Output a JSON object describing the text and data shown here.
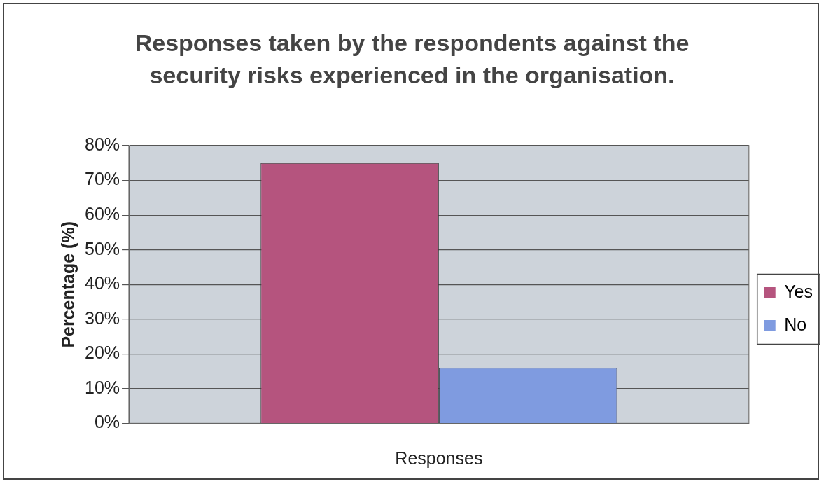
{
  "chart_data": {
    "type": "bar",
    "title": "Responses taken by the respondents against the security risks experienced in the organisation.",
    "xlabel": "Responses",
    "ylabel": "Percentage (%)",
    "categories": [
      null
    ],
    "series": [
      {
        "name": "Yes",
        "color": "#b5547e",
        "values": [
          75
        ]
      },
      {
        "name": "No",
        "color": "#7f9be0",
        "values": [
          16
        ]
      }
    ],
    "ylim": [
      0,
      80
    ],
    "yticks": [
      {
        "value": 0,
        "label": "0%"
      },
      {
        "value": 10,
        "label": "10%"
      },
      {
        "value": 20,
        "label": "20%"
      },
      {
        "value": 30,
        "label": "30%"
      },
      {
        "value": 40,
        "label": "40%"
      },
      {
        "value": 50,
        "label": "50%"
      },
      {
        "value": 60,
        "label": "60%"
      },
      {
        "value": 70,
        "label": "70%"
      },
      {
        "value": 80,
        "label": "80%"
      }
    ],
    "grid": "y",
    "legend": "right"
  }
}
